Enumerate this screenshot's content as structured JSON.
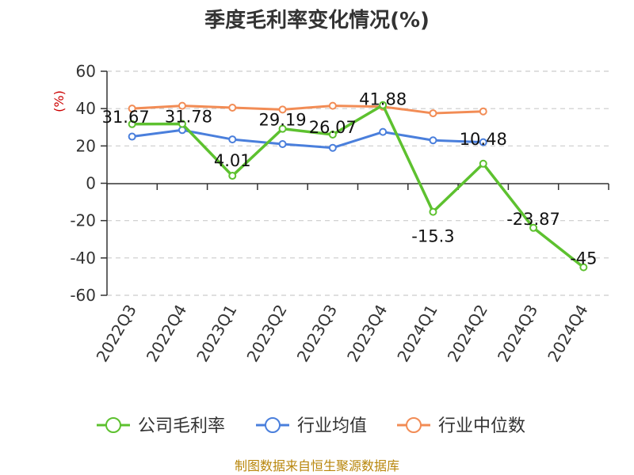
{
  "chart_data": {
    "type": "line",
    "title": "季度毛利率变化情况(%)",
    "ylabel": "(%)",
    "ylim": [
      -60,
      60
    ],
    "yticks": [
      60,
      40,
      20,
      0,
      -20,
      -40,
      -60
    ],
    "grid": true,
    "legend_position": "bottom",
    "categories": [
      "2022Q3",
      "2022Q4",
      "2023Q1",
      "2023Q2",
      "2023Q3",
      "2023Q4",
      "2024Q1",
      "2024Q2",
      "2024Q3",
      "2024Q4"
    ],
    "series": [
      {
        "name": "公司毛利率",
        "color": "#5dc12f",
        "values": [
          31.67,
          31.78,
          4.01,
          29.19,
          26.07,
          41.88,
          -15.3,
          10.48,
          -23.87,
          -45
        ],
        "labels": [
          "31.67",
          "31.78",
          "4.01",
          "29.19",
          "26.07",
          "41.88",
          "-15.3",
          "10.48",
          "-23.87",
          "-45"
        ]
      },
      {
        "name": "行业均值",
        "color": "#4a7fdc",
        "values": [
          25,
          28.5,
          23.5,
          21,
          19,
          27.5,
          23,
          22,
          null,
          null
        ]
      },
      {
        "name": "行业中位数",
        "color": "#f28c55",
        "values": [
          40,
          41.5,
          40.5,
          39.5,
          41.5,
          41,
          37.5,
          38.5,
          null,
          null
        ]
      }
    ]
  },
  "source": "制图数据来自恒生聚源数据库"
}
